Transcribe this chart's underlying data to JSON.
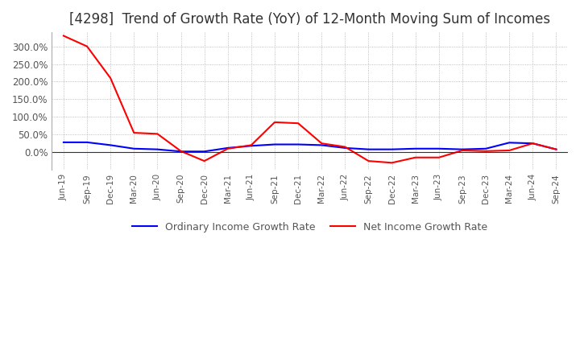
{
  "title": "[4298]  Trend of Growth Rate (YoY) of 12-Month Moving Sum of Incomes",
  "title_fontsize": 12,
  "ylim": [
    -50,
    340
  ],
  "yticks": [
    0,
    50,
    100,
    150,
    200,
    250,
    300
  ],
  "legend_labels": [
    "Ordinary Income Growth Rate",
    "Net Income Growth Rate"
  ],
  "ordinary_color": "#0000FF",
  "net_color": "#FF0000",
  "background_color": "#FFFFFF",
  "grid_color": "#AAAAAA",
  "x_labels": [
    "Jun-19",
    "Sep-19",
    "Dec-19",
    "Mar-20",
    "Jun-20",
    "Sep-20",
    "Dec-20",
    "Mar-21",
    "Jun-21",
    "Sep-21",
    "Dec-21",
    "Mar-22",
    "Jun-22",
    "Sep-22",
    "Dec-22",
    "Mar-23",
    "Jun-23",
    "Sep-23",
    "Dec-23",
    "Mar-24",
    "Jun-24",
    "Sep-24"
  ],
  "ordinary_income_growth": [
    28,
    28,
    20,
    10,
    8,
    2,
    2,
    12,
    18,
    22,
    22,
    20,
    12,
    8,
    8,
    10,
    10,
    8,
    10,
    27,
    25,
    8
  ],
  "net_income_growth": [
    330,
    300,
    210,
    55,
    52,
    3,
    -25,
    10,
    20,
    85,
    82,
    25,
    15,
    -25,
    -30,
    -15,
    -15,
    5,
    3,
    5,
    25,
    8
  ]
}
